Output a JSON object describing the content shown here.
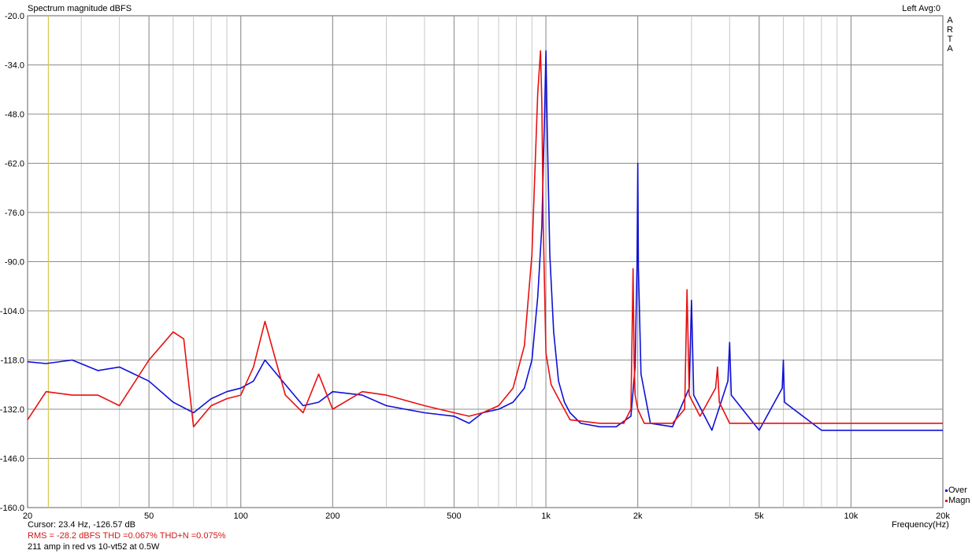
{
  "header": {
    "title": "Spectrum magnitude dBFS",
    "channel_info": "Left  Avg:0",
    "vertical_label": [
      "A",
      "R",
      "T",
      "A"
    ]
  },
  "footer": {
    "cursor": "Cursor:   23.4 Hz, -126.57 dB",
    "rms": "RMS =  -28.2 dBFS   THD =0.067%   THD+N =0.075%",
    "note": "211 amp in red vs 10-vt52 at 0.5W",
    "x_unit": "Frequency(Hz)"
  },
  "colors": {
    "series_over": "#1010d8",
    "series_magn": "#e81010",
    "cursor_line": "#d8c850",
    "grid_major": "#8c8c8c",
    "grid_minor": "#c8c8c8"
  },
  "chart_data": {
    "type": "line",
    "title": "Spectrum magnitude dBFS",
    "xlabel": "Frequency(Hz)",
    "ylabel": "",
    "xscale": "log",
    "xlim": [
      20,
      20000
    ],
    "ylim": [
      -160,
      -20
    ],
    "x_tick_labels": [
      {
        "value": 20,
        "label": "20"
      },
      {
        "value": 50,
        "label": "50"
      },
      {
        "value": 100,
        "label": "100"
      },
      {
        "value": 200,
        "label": "200"
      },
      {
        "value": 500,
        "label": "500"
      },
      {
        "value": 1000,
        "label": "1k"
      },
      {
        "value": 2000,
        "label": "2k"
      },
      {
        "value": 5000,
        "label": "5k"
      },
      {
        "value": 10000,
        "label": "10k"
      },
      {
        "value": 20000,
        "label": "20k"
      }
    ],
    "y_ticks": [
      -20.0,
      -34.0,
      -48.0,
      -62.0,
      -76.0,
      -90.0,
      -104.0,
      -118.0,
      -132.0,
      -146.0,
      -160.0
    ],
    "y_tick_labels": [
      "-20.0",
      "-34.0",
      "-48.0",
      "-62.0",
      "-76.0",
      "-90.0",
      "-104.0",
      "-118.0",
      "-132.0",
      "-146.0",
      "-160.0"
    ],
    "grid": true,
    "legend_position": "bottom-right",
    "cursor_frequency_hz": 23.4,
    "series": [
      {
        "name": "Over",
        "color": "#1010d8",
        "x": [
          20,
          23,
          28,
          34,
          40,
          50,
          60,
          70,
          80,
          90,
          100,
          110,
          120,
          140,
          160,
          180,
          200,
          250,
          300,
          400,
          500,
          560,
          620,
          700,
          780,
          850,
          900,
          940,
          970,
          990,
          1000,
          1010,
          1030,
          1060,
          1100,
          1150,
          1200,
          1300,
          1500,
          1700,
          1900,
          1960,
          1990,
          2000,
          2010,
          2050,
          2200,
          2600,
          2950,
          3000,
          3050,
          3500,
          3950,
          4000,
          4050,
          5000,
          5950,
          6000,
          6050,
          8000,
          10000,
          12000,
          15000,
          20000
        ],
        "y": [
          -118.5,
          -119,
          -118,
          -121,
          -120,
          -124,
          -130,
          -133,
          -129,
          -127,
          -126,
          -124,
          -118,
          -125,
          -131,
          -130,
          -127,
          -128,
          -131,
          -133,
          -134,
          -136,
          -133,
          -132,
          -130,
          -126,
          -118,
          -100,
          -80,
          -48,
          -30,
          -52,
          -88,
          -110,
          -124,
          -130,
          -133,
          -136,
          -137,
          -137,
          -134,
          -120,
          -90,
          -62,
          -92,
          -122,
          -136,
          -137,
          -126,
          -101,
          -128,
          -138,
          -124,
          -113,
          -128,
          -138,
          -126,
          -118,
          -130,
          -138,
          -138,
          -138,
          -138,
          -138
        ]
      },
      {
        "name": "Magn",
        "color": "#e81010",
        "x": [
          20,
          23,
          28,
          34,
          40,
          50,
          60,
          65,
          70,
          80,
          90,
          100,
          110,
          120,
          140,
          160,
          180,
          200,
          250,
          300,
          400,
          500,
          560,
          620,
          700,
          780,
          850,
          900,
          940,
          960,
          970,
          980,
          1000,
          1040,
          1100,
          1200,
          1500,
          1800,
          1900,
          1930,
          1945,
          1960,
          2000,
          2100,
          2600,
          2850,
          2900,
          2950,
          3200,
          3600,
          3650,
          3700,
          4000,
          6000,
          8000,
          10000,
          12000,
          15000,
          20000
        ],
        "y": [
          -135,
          -127,
          -128,
          -128,
          -131,
          -118,
          -110,
          -112,
          -137,
          -131,
          -129,
          -128,
          -120,
          -107,
          -128,
          -133,
          -122,
          -132,
          -127,
          -128,
          -131,
          -133,
          -134,
          -133,
          -131,
          -126,
          -114,
          -88,
          -42,
          -30,
          -45,
          -80,
          -116,
          -125,
          -129,
          -135,
          -136,
          -136,
          -132,
          -92,
          -118,
          -128,
          -132,
          -136,
          -136,
          -132,
          -98,
          -128,
          -134,
          -126,
          -120,
          -130,
          -136,
          -136,
          -136,
          -136,
          -136,
          -136,
          -136
        ]
      }
    ]
  }
}
